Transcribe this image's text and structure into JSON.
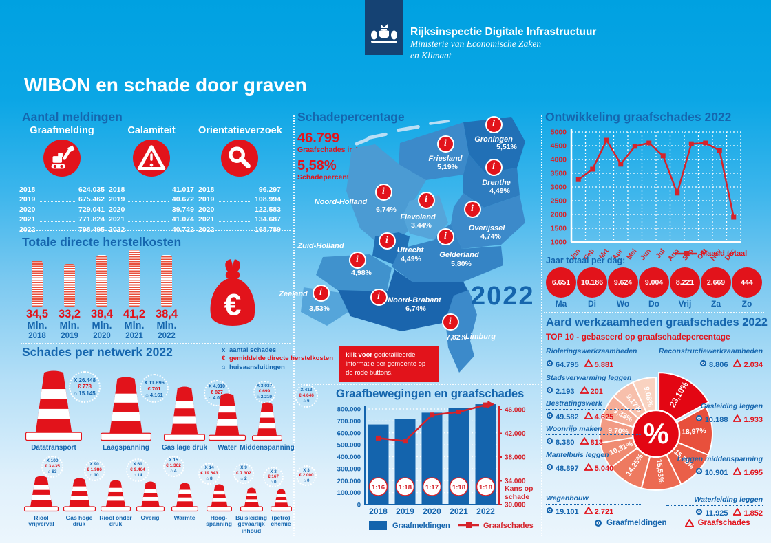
{
  "brand": {
    "agency": "Rijksinspectie Digitale Infrastructuur",
    "ministry_line1": "Ministerie van Economische Zaken",
    "ministry_line2": "en Klimaat"
  },
  "title": "WIBON en schade door graven",
  "colors": {
    "accent_red": "#e2131b",
    "bright_red": "#e30613",
    "title_blue": "#1566ae",
    "bar_blue": "#1464ad",
    "brand_navy": "#154273"
  },
  "meldingen": {
    "title": "Aantal meldingen",
    "groups": [
      {
        "label": "Graafmelding",
        "icon": "excavator-icon",
        "rows": [
          {
            "year": "2018",
            "value": "624.035"
          },
          {
            "year": "2019",
            "value": "675.462"
          },
          {
            "year": "2020",
            "value": "729.041"
          },
          {
            "year": "2021",
            "value": "771.824"
          },
          {
            "year": "2022",
            "value": "798.495"
          }
        ]
      },
      {
        "label": "Calamiteit",
        "icon": "warning-triangle-icon",
        "rows": [
          {
            "year": "2018",
            "value": "41.017"
          },
          {
            "year": "2019",
            "value": "40.672"
          },
          {
            "year": "2020",
            "value": "39.749"
          },
          {
            "year": "2021",
            "value": "41.074"
          },
          {
            "year": "2022",
            "value": "40.722"
          }
        ]
      },
      {
        "label": "Orientatieverzoek",
        "icon": "magnifier-icon",
        "rows": [
          {
            "year": "2018",
            "value": "96.297"
          },
          {
            "year": "2019",
            "value": "108.994"
          },
          {
            "year": "2020",
            "value": "122.583"
          },
          {
            "year": "2021",
            "value": "134.687"
          },
          {
            "year": "2022",
            "value": "168.789"
          }
        ]
      }
    ]
  },
  "herstelkosten": {
    "title": "Totale directe herstelkosten",
    "items": [
      {
        "value": "34,5",
        "unit": "Mln.",
        "year": "2018"
      },
      {
        "value": "33,2",
        "unit": "Mln.",
        "year": "2019"
      },
      {
        "value": "38,4",
        "unit": "Mln.",
        "year": "2020"
      },
      {
        "value": "41,2",
        "unit": "Mln.",
        "year": "2021"
      },
      {
        "value": "38,4",
        "unit": "Mln.",
        "year": "2022"
      }
    ],
    "euro_symbol": "€"
  },
  "netwerk": {
    "title": "Schades per netwerk 2022",
    "legend": [
      {
        "symbol": "x",
        "label": "aantal schades",
        "color": "#1566ae"
      },
      {
        "symbol": "€",
        "label": "gemiddelde directe herstelkosten",
        "color": "#e2131b"
      },
      {
        "symbol": "⌂",
        "label": "huisaansluitingen",
        "color": "#1566ae"
      }
    ],
    "top": [
      {
        "name": "Datatransport",
        "schades": "X 26.448",
        "kosten": "€ 778",
        "huis": "⌂ 15.145"
      },
      {
        "name": "Laagspanning",
        "schades": "X 11.696",
        "kosten": "€ 701",
        "huis": "⌂ 4.161"
      },
      {
        "name": "Gas lage druk",
        "schades": "X 4.910",
        "kosten": "€ 827",
        "huis": "⌂ 4.005"
      },
      {
        "name": "Water",
        "schades": "X 3.037",
        "kosten": "€ 699",
        "huis": "⌂ 2.219"
      },
      {
        "name": "Middenspanning",
        "schades": "X 413",
        "kosten": "€ 4.646",
        "huis": "⌂ 6"
      }
    ],
    "bottom": [
      {
        "name": "Riool vrijverval",
        "schades": "X 100",
        "kosten": "€ 3.435",
        "huis": "⌂ 83"
      },
      {
        "name": "Gas hoge druk",
        "schades": "X 90",
        "kosten": "€ 1.986",
        "huis": "⌂ 10"
      },
      {
        "name": "Riool onder druk",
        "schades": "X 61",
        "kosten": "€ 9.464",
        "huis": "⌂ 14"
      },
      {
        "name": "Overig",
        "schades": "X 15",
        "kosten": "€ 1.362",
        "huis": "⌂ 4"
      },
      {
        "name": "Warmte",
        "schades": "X 14",
        "kosten": "€ 19.643",
        "huis": "⌂ 8"
      },
      {
        "name": "Hoog- spanning",
        "schades": "X 9",
        "kosten": "€ 7.302",
        "huis": "⌂ 2"
      },
      {
        "name": "Buisleiding gevaarlijk inhoud",
        "schades": "X 3",
        "kosten": "€ 167",
        "huis": "⌂ 0"
      },
      {
        "name": "(petro) chemie",
        "schades": "X 3",
        "kosten": "€ 2.000",
        "huis": "⌂ 0"
      }
    ]
  },
  "schadepercentage": {
    "title": "Schadepercentage",
    "stat1": {
      "value": "46.799",
      "label": "Graafschades in NL"
    },
    "stat2": {
      "value": "5,58%",
      "label": "Schadepercentage in NL"
    },
    "year_badge": "2022",
    "note": {
      "bold": "klik voor",
      "rest": " gedetailleerde informatie per gemeente op de rode buttons."
    },
    "provinces": [
      {
        "name": "Groningen",
        "pct": "5,51%",
        "fill": "#2170b6"
      },
      {
        "name": "Friesland",
        "pct": "5,19%",
        "fill": "#3c8aca"
      },
      {
        "name": "Drenthe",
        "pct": "4,49%",
        "fill": "#2e7cbf"
      },
      {
        "name": "Noord-Holland",
        "pct": "6,74%",
        "fill": "#4b9bd3"
      },
      {
        "name": "Flevoland",
        "pct": "3,44%",
        "fill": "#55a5da"
      },
      {
        "name": "Overijssel",
        "pct": "4,74%",
        "fill": "#3c8aca"
      },
      {
        "name": "Utrecht",
        "pct": "4,49%",
        "fill": "#2170b6"
      },
      {
        "name": "Gelderland",
        "pct": "5,80%",
        "fill": "#3584c5"
      },
      {
        "name": "Zuid-Holland",
        "pct": "4,98%",
        "fill": "#4092cd"
      },
      {
        "name": "Zeeland",
        "pct": "3,53%",
        "fill": "#55a5da"
      },
      {
        "name": "Noord-Brabant",
        "pct": "6,74%",
        "fill": "#1a65ad"
      },
      {
        "name": "Limburg",
        "pct": "7,82%",
        "fill": "#3c8aca"
      }
    ]
  },
  "ontwikkeling": {
    "title": "Ontwikkeling graafschades 2022",
    "legend": "Maand totaal"
  },
  "jaar_totaal": {
    "title": "Jaar totaal per dag:",
    "days": [
      {
        "value": "6.651",
        "label": "Ma"
      },
      {
        "value": "10.186",
        "label": "Di"
      },
      {
        "value": "9.624",
        "label": "Wo"
      },
      {
        "value": "9.004",
        "label": "Do"
      },
      {
        "value": "8.221",
        "label": "Vrij"
      },
      {
        "value": "2.669",
        "label": "Za"
      },
      {
        "value": "444",
        "label": "Zo"
      }
    ]
  },
  "graafbewegingen": {
    "title": "Graafbewegingen en graafschades",
    "legend": {
      "bar": "Graafmeldingen",
      "line": "Graafschades"
    }
  },
  "aard": {
    "title": "Aard werkzaamheden graafschades 2022",
    "subtitle": "TOP 10 - gebaseerd op graafschadepercentage",
    "legend": {
      "meldingen": "Graafmeldingen",
      "schades": "Graafschades"
    },
    "items": [
      {
        "name": "Rioleringswerkzaamheden",
        "meldingen": "64.795",
        "schades": "5.881"
      },
      {
        "name": "Stadsverwarming leggen",
        "meldingen": "2.193",
        "schades": "201"
      },
      {
        "name": "Bestratingswerk",
        "meldingen": "49.582",
        "schades": "4.625"
      },
      {
        "name": "Woonrijp maken",
        "meldingen": "8.380",
        "schades": "813"
      },
      {
        "name": "Mantelbuis leggen",
        "meldingen": "48.897",
        "schades": "5.040"
      },
      {
        "name": "Wegenbouw",
        "meldingen": "19.101",
        "schades": "2.721"
      },
      {
        "name": "Reconstructiewerkzaamheden",
        "meldingen": "8.806",
        "schades": "2.034"
      },
      {
        "name": "Gasleiding leggen",
        "meldingen": "10.188",
        "schades": "1.933"
      },
      {
        "name": "Leggen middenspanning",
        "meldingen": "10.901",
        "schades": "1.695"
      },
      {
        "name": "Waterleiding leggen",
        "meldingen": "11.925",
        "schades": "1.852"
      }
    ]
  },
  "chart_data": [
    {
      "type": "line",
      "title": "Ontwikkeling graafschades 2022",
      "x": [
        "Jan",
        "Feb",
        "Mrt",
        "Apr",
        "Mei",
        "Jun",
        "Jul",
        "Aug",
        "Sep",
        "Okt",
        "Nov",
        "Dec"
      ],
      "series": [
        {
          "name": "Maand totaal",
          "values": [
            3270,
            3650,
            4700,
            3830,
            4480,
            4600,
            4130,
            2780,
            4570,
            4600,
            4330,
            1900
          ]
        }
      ],
      "ylim": [
        1000,
        5000
      ],
      "ytick": 500,
      "grid": true,
      "legend_position": "bottom-right",
      "line_color": "#d5232b"
    },
    {
      "type": "bar",
      "title": "Graafbewegingen en graafschades",
      "categories": [
        "2018",
        "2019",
        "2020",
        "2021",
        "2022"
      ],
      "series": [
        {
          "name": "Graafmeldingen",
          "type": "bar",
          "axis": "left",
          "values": [
            670000,
            714000,
            769000,
            810000,
            840000
          ]
        },
        {
          "name": "Graafschades",
          "type": "line",
          "axis": "right",
          "values": [
            41200,
            40700,
            45100,
            45600,
            46800
          ]
        }
      ],
      "bar_badges": [
        "1:16",
        "1:18",
        "1:17",
        "1:18",
        "1:18"
      ],
      "left_ylim": [
        0,
        800000
      ],
      "left_ytick": 100000,
      "right_ylim": [
        30000,
        46000
      ],
      "right_ytick": 4000,
      "right_axis_label": "Kans op schade",
      "grid": true
    },
    {
      "type": "pie",
      "title": "Aard werkzaamheden graafschades 2022 - TOP 10",
      "labels": [
        "Reconstructiewerkzaamheden",
        "Gasleiding leggen",
        "Leggen middenspanning",
        "Waterleiding leggen",
        "Wegenbouw",
        "Mantelbuis leggen",
        "Woonrijp maken",
        "Bestratingswerk",
        "Stadsverwarming leggen",
        "Rioleringswerkzaamheden"
      ],
      "values": [
        23.1,
        18.97,
        15.55,
        15.53,
        14.25,
        10.31,
        9.7,
        9.33,
        9.17,
        9.08
      ],
      "display_labels": [
        "23,10%",
        "18,97%",
        "15,55%",
        "15,53%",
        "14,25%",
        "10,31%",
        "9,70%",
        "9,33%",
        "9,17%",
        "9,08%"
      ],
      "center_label": "%",
      "palette": [
        "#e30613",
        "#e8503c",
        "#ea5f48",
        "#ec6a52",
        "#ee7a60",
        "#f08b72",
        "#f29b84",
        "#f5ad97",
        "#f7bfab",
        "#f9d2c0"
      ]
    }
  ]
}
